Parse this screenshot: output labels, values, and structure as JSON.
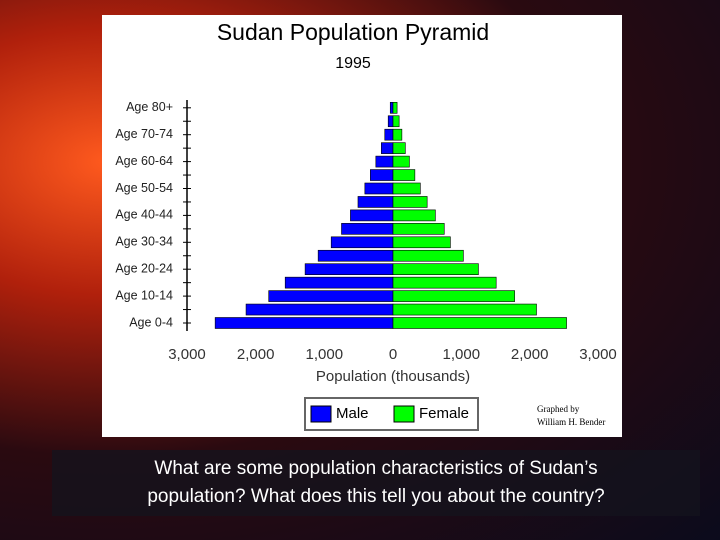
{
  "chart_data": {
    "type": "pyramid",
    "title": "Sudan Population Pyramid",
    "subtitle": "1995",
    "x_label": "Population (thousands)",
    "categories": [
      "Age 0-4",
      null,
      "Age 10-14",
      null,
      "Age 20-24",
      null,
      "Age 30-34",
      null,
      "Age 40-44",
      null,
      "Age 50-54",
      null,
      "Age 60-64",
      null,
      "Age 70-74",
      null,
      "Age 80+"
    ],
    "series": [
      {
        "name": "Male",
        "color": "#0000ff",
        "side": "left",
        "values": [
          2590,
          2140,
          1810,
          1570,
          1280,
          1090,
          900,
          750,
          620,
          510,
          410,
          330,
          250,
          170,
          120,
          70,
          40
        ]
      },
      {
        "name": "Female",
        "color": "#00ff00",
        "side": "right",
        "values": [
          2540,
          2100,
          1780,
          1510,
          1250,
          1030,
          840,
          750,
          620,
          500,
          400,
          320,
          240,
          180,
          130,
          90,
          60
        ]
      }
    ],
    "xlim": [
      -3000,
      3000
    ],
    "xticks": [
      {
        "value": -3000,
        "label": "3,000"
      },
      {
        "value": -2000,
        "label": "2,000"
      },
      {
        "value": -1000,
        "label": "1,000"
      },
      0,
      {
        "value": 1000,
        "label": "1,000"
      },
      {
        "value": 2000,
        "label": "2,000"
      },
      {
        "value": 3000,
        "label": "3,000"
      }
    ],
    "annotation": [
      "Graphed by",
      "William H. Bender"
    ]
  },
  "caption": [
    "What are some population characteristics of Sudan’s",
    "population? What does this tell you about the country?"
  ]
}
